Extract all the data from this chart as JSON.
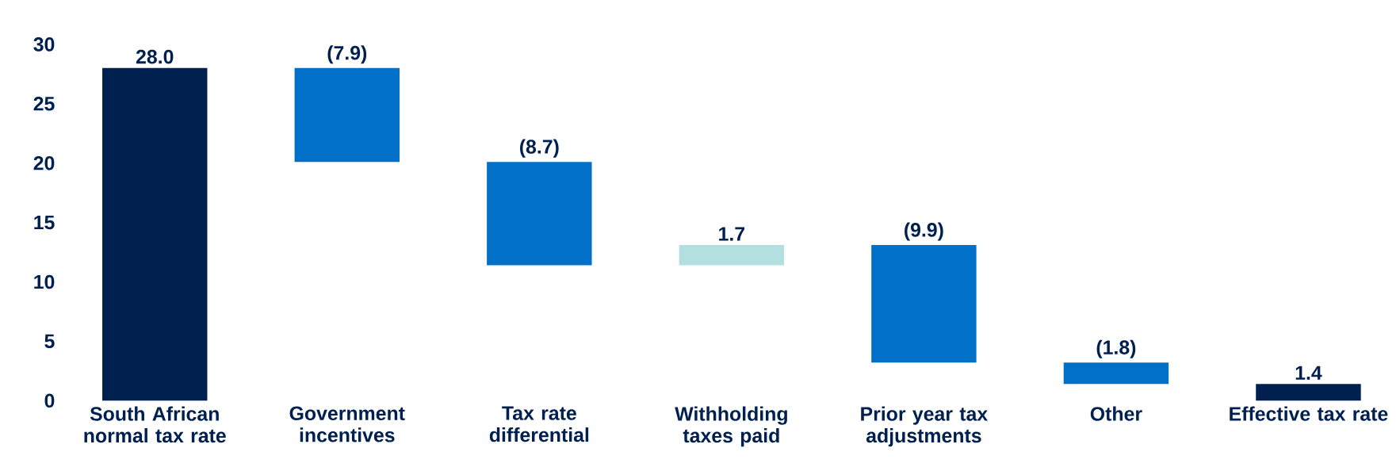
{
  "chart_data": {
    "type": "bar",
    "categories": [
      "South African normal tax rate",
      "Government incentives",
      "Tax rate differential",
      "Withholding taxes paid",
      "Prior year tax adjustments",
      "Other",
      "Effective tax rate"
    ],
    "values": [
      28.0,
      -7.9,
      -8.7,
      1.7,
      -9.9,
      -1.8,
      1.4
    ],
    "base": [
      0,
      28.0,
      20.1,
      11.4,
      13.1,
      3.2,
      0
    ],
    "colors": [
      "#002050",
      "#0070c8",
      "#0070c8",
      "#b4dfe0",
      "#0070c8",
      "#0070c8",
      "#002050"
    ],
    "value_labels": [
      "28.0",
      "(7.9)",
      "(8.7)",
      "1.7",
      "(9.9)",
      "(1.8)",
      "1.4"
    ],
    "ylim": [
      0,
      30
    ],
    "yticks": [
      0,
      5,
      10,
      15,
      20,
      25,
      30
    ]
  }
}
